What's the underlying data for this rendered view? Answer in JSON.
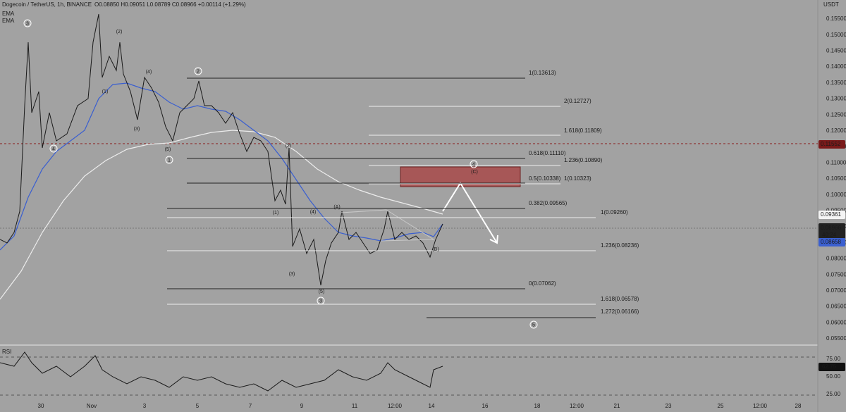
{
  "header": {
    "symbol": "Dogecoin / TetherUS, 1h, BINANCE",
    "ohlc": "O0.08850 H0.09051 L0.08789 C0.08966 +0.00114 (+1.29%)",
    "indicators": [
      "EMA",
      "EMA"
    ]
  },
  "price_axis": {
    "unit": "USDT",
    "labels": [
      "0.15500",
      "0.15000",
      "0.14500",
      "0.14000",
      "0.13500",
      "0.13000",
      "0.12500",
      "0.12000",
      "0.11500",
      "0.11000",
      "0.10500",
      "0.10000",
      "0.09500",
      "0.09000",
      "0.08500",
      "0.08000",
      "0.07500",
      "0.07000",
      "0.06500",
      "0.06000",
      "0.05500"
    ]
  },
  "price_tags": {
    "alert": "0.11552",
    "level": "0.09361",
    "last": "0.08966",
    "countdown": "40:24",
    "ema": "0.08658"
  },
  "time_axis": [
    "30",
    "Nov",
    "3",
    "5",
    "7",
    "9",
    "11",
    "12:00",
    "14",
    "16",
    "18",
    "12:00",
    "21",
    "23",
    "25",
    "12:00",
    "28"
  ],
  "fib_labels": [
    "1(0.13613)",
    "2(0.12727)",
    "1.618(0.11809)",
    "0.618(0.11110)",
    "1.236(0.10890)",
    "0.5(0.10338)",
    "1(0.10323)",
    "0.382(0.09565)",
    "1(0.09260)",
    "1.236(0.08236)",
    "0(0.07062)",
    "1.618(0.06578)",
    "1.272(0.06166)"
  ],
  "wave_labels": {
    "circled": [
      "3",
      "4",
      "1",
      "2",
      "4",
      "3",
      "5"
    ],
    "bracketed": [
      "(2)",
      "(1)",
      "(4)",
      "(3)",
      "(5)",
      "(2)",
      "(1)",
      "(4)",
      "(A)",
      "(3)",
      "(5)",
      "(C)",
      "(B)"
    ]
  },
  "rsi": {
    "title": "RSI",
    "axis": [
      "75.00",
      "50.00",
      "25.00"
    ],
    "value": "62.75"
  }
}
